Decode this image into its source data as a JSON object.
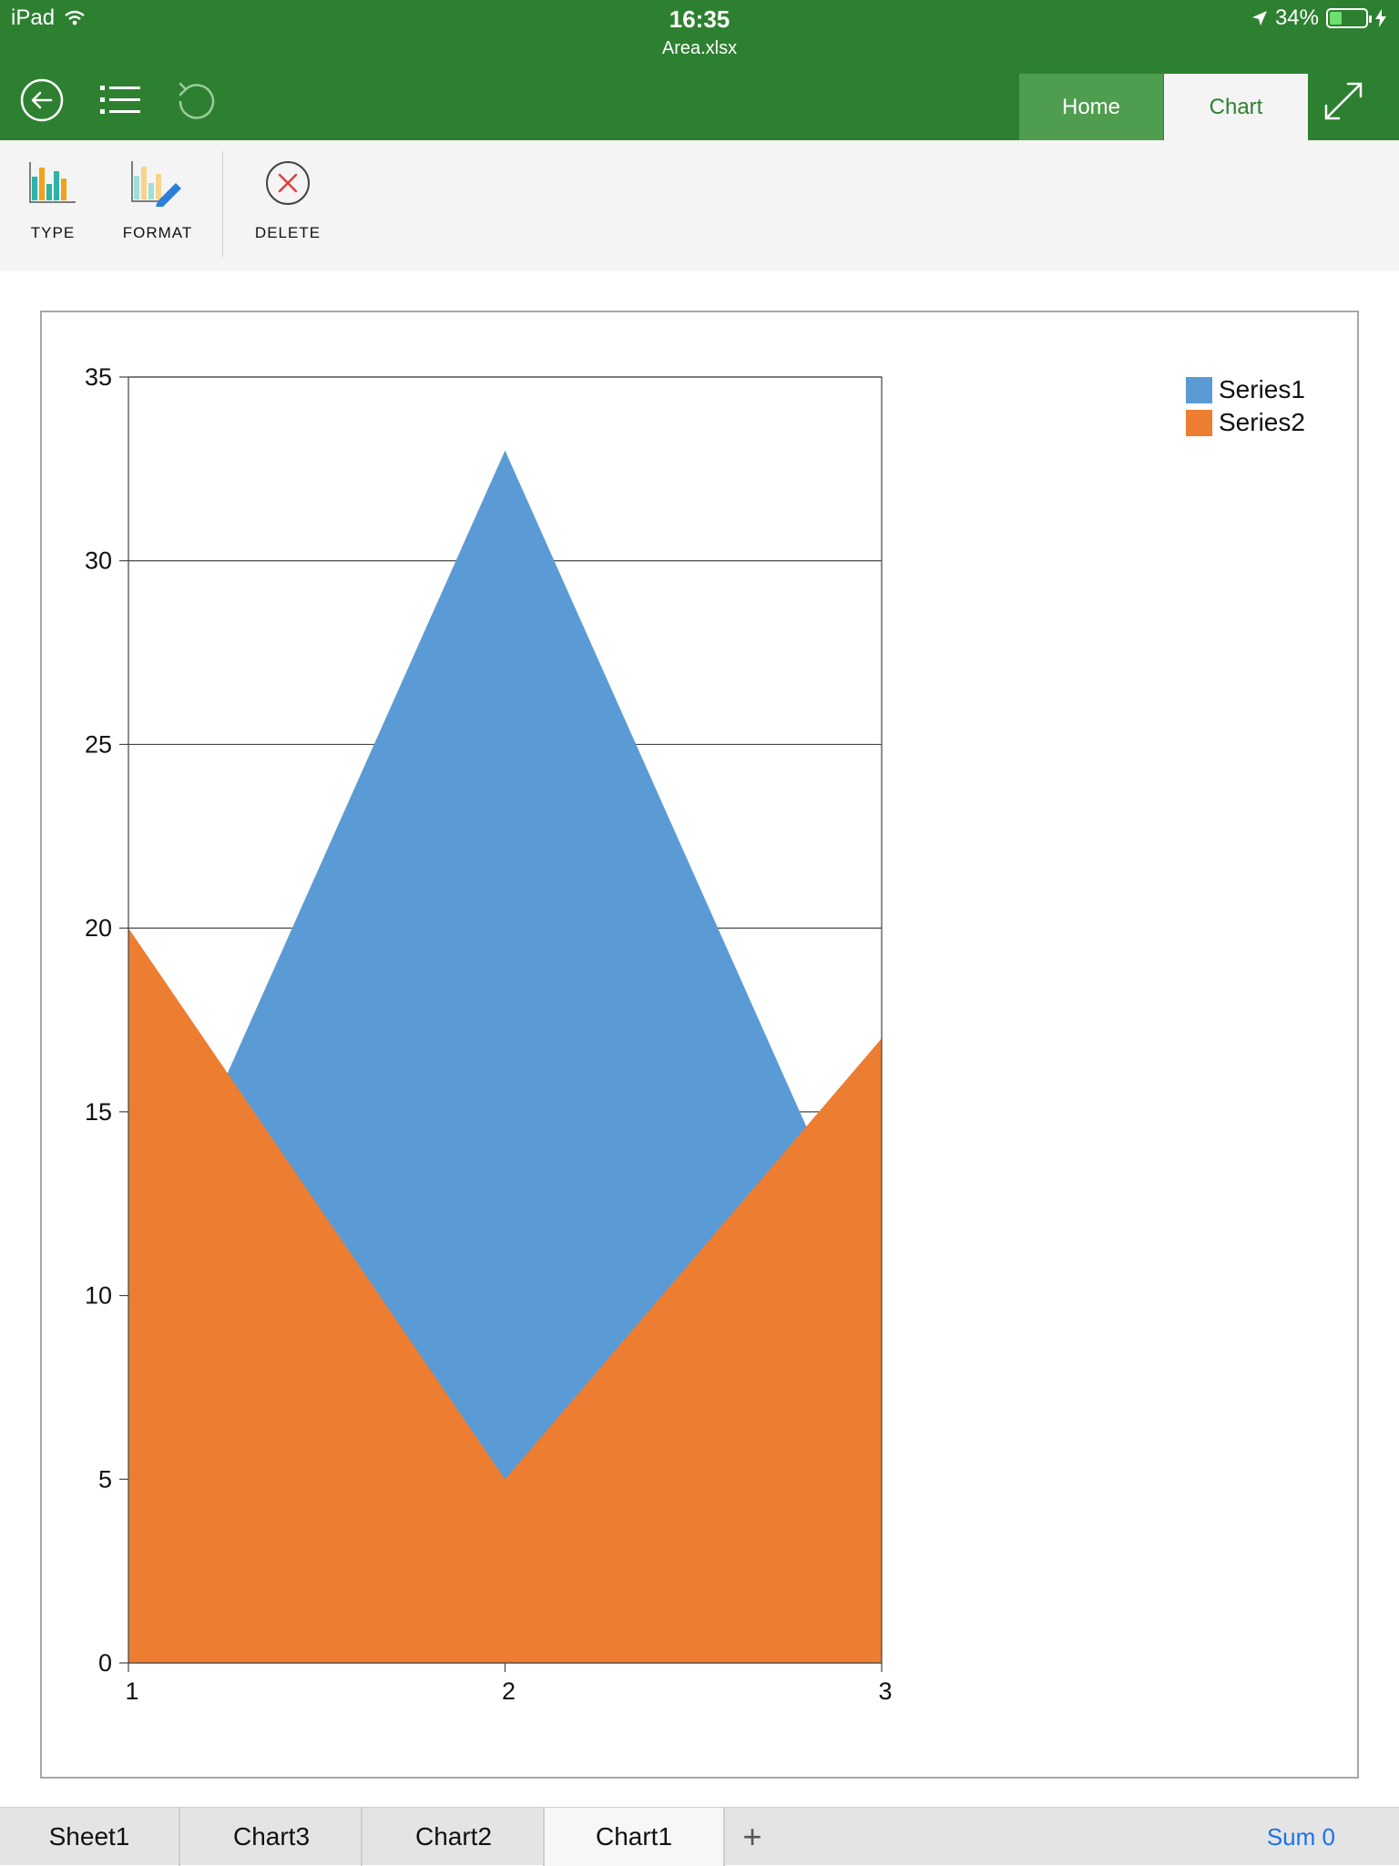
{
  "status": {
    "device": "iPad",
    "time": "16:35",
    "battery": "34%",
    "battery_level": 0.34
  },
  "document": {
    "file_name": "Area.xlsx"
  },
  "nav": {
    "back_icon": "back-arrow-icon",
    "list_icon": "list-icon",
    "undo_icon": "undo-icon"
  },
  "tabs": [
    {
      "label": "Home"
    },
    {
      "label": "Chart"
    }
  ],
  "ribbon": {
    "type_label": "TYPE",
    "format_label": "FORMAT",
    "delete_label": "DELETE"
  },
  "sheets": [
    {
      "label": "Sheet1"
    },
    {
      "label": "Chart3"
    },
    {
      "label": "Chart2"
    },
    {
      "label": "Chart1"
    }
  ],
  "add_sheet": "+",
  "sum_label": "Sum 0",
  "chart_data": {
    "type": "area",
    "categories": [
      "1",
      "2",
      "3"
    ],
    "series": [
      {
        "name": "Series1",
        "values": [
          10,
          33,
          10
        ],
        "color": "#5b9bd5"
      },
      {
        "name": "Series2",
        "values": [
          20,
          5,
          17
        ],
        "color": "#ed7d31"
      }
    ],
    "ylim": [
      0,
      35
    ],
    "yticks": [
      "0",
      "5",
      "10",
      "15",
      "20",
      "25",
      "30",
      "35"
    ],
    "grid": true,
    "legend": "top-right"
  }
}
